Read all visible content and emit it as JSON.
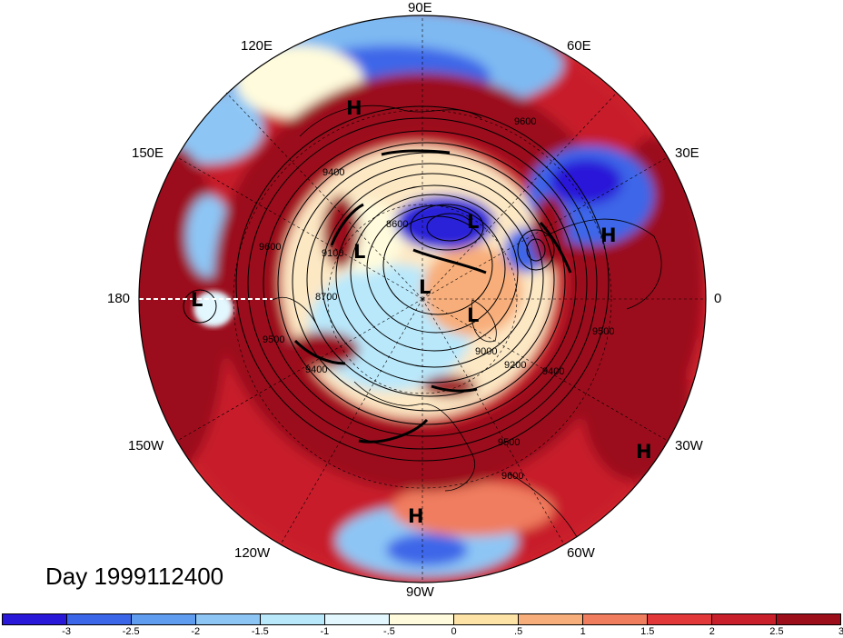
{
  "longitude_labels": {
    "e90": "90E",
    "e120": "120E",
    "e60": "60E",
    "e150": "150E",
    "e30": "30E",
    "d180": "180",
    "d0": "0",
    "w150": "150W",
    "w30": "30W",
    "w120": "120W",
    "w60": "60W",
    "w90": "90W"
  },
  "pressure_centers": {
    "h1": "H",
    "h2": "H",
    "h3": "H",
    "h4": "H",
    "l1": "L",
    "l2": "L",
    "l3": "L",
    "l4": "L",
    "l5": "L"
  },
  "contour_labels": [
    "9600",
    "9400",
    "9500",
    "9100",
    "8700",
    "8600",
    "9000",
    "9200",
    "9400",
    "9500",
    "9600",
    "9500",
    "9400",
    "9600"
  ],
  "date_label": "Day 1999112400",
  "colorbar": {
    "colors": [
      "#2a18d8",
      "#3c66e8",
      "#5f9cf0",
      "#8dc6f5",
      "#b9e8fb",
      "#e2f7fe",
      "#fffbdc",
      "#fde4a6",
      "#f8ae7a",
      "#f07d5e",
      "#e3383a",
      "#c81f2a",
      "#9b0e1a"
    ],
    "ticks": [
      "-3",
      "-2.5",
      "-2",
      "-1.5",
      "-1",
      "-.5",
      "0",
      ".5",
      "1",
      "1.5",
      "2",
      "2.5",
      "3"
    ]
  },
  "palette": {
    "deep_red": "#9b0e1a",
    "red": "#d6282e",
    "light_red": "#f07d5e",
    "cream": "#fde8c4",
    "light_blue": "#a9dcf8",
    "blue": "#4a86e6",
    "deep_blue": "#2a22d8"
  }
}
